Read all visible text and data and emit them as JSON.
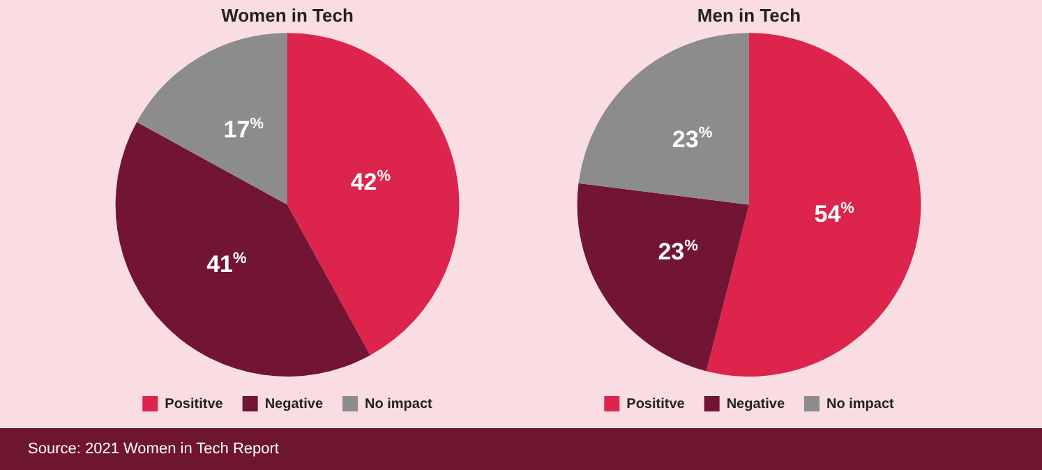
{
  "chart_data": [
    {
      "type": "pie",
      "title": "Women in Tech",
      "categories": [
        "Posititve",
        "Negative",
        "No impact"
      ],
      "values": [
        42,
        41,
        17
      ],
      "colors": [
        "#dc244c",
        "#721433",
        "#8c8c8c"
      ],
      "value_labels": [
        "42%",
        "41%",
        "17%"
      ],
      "legend": "bottom"
    },
    {
      "type": "pie",
      "title": "Men in Tech",
      "categories": [
        "Posititve",
        "Negative",
        "No impact"
      ],
      "values": [
        54,
        23,
        23
      ],
      "colors": [
        "#dc244c",
        "#721433",
        "#8c8c8c"
      ],
      "value_labels": [
        "54%",
        "23%",
        "23%"
      ],
      "legend": "bottom",
      "annotations": [
        "Source: 2021 Women in Tech Report"
      ]
    }
  ]
}
